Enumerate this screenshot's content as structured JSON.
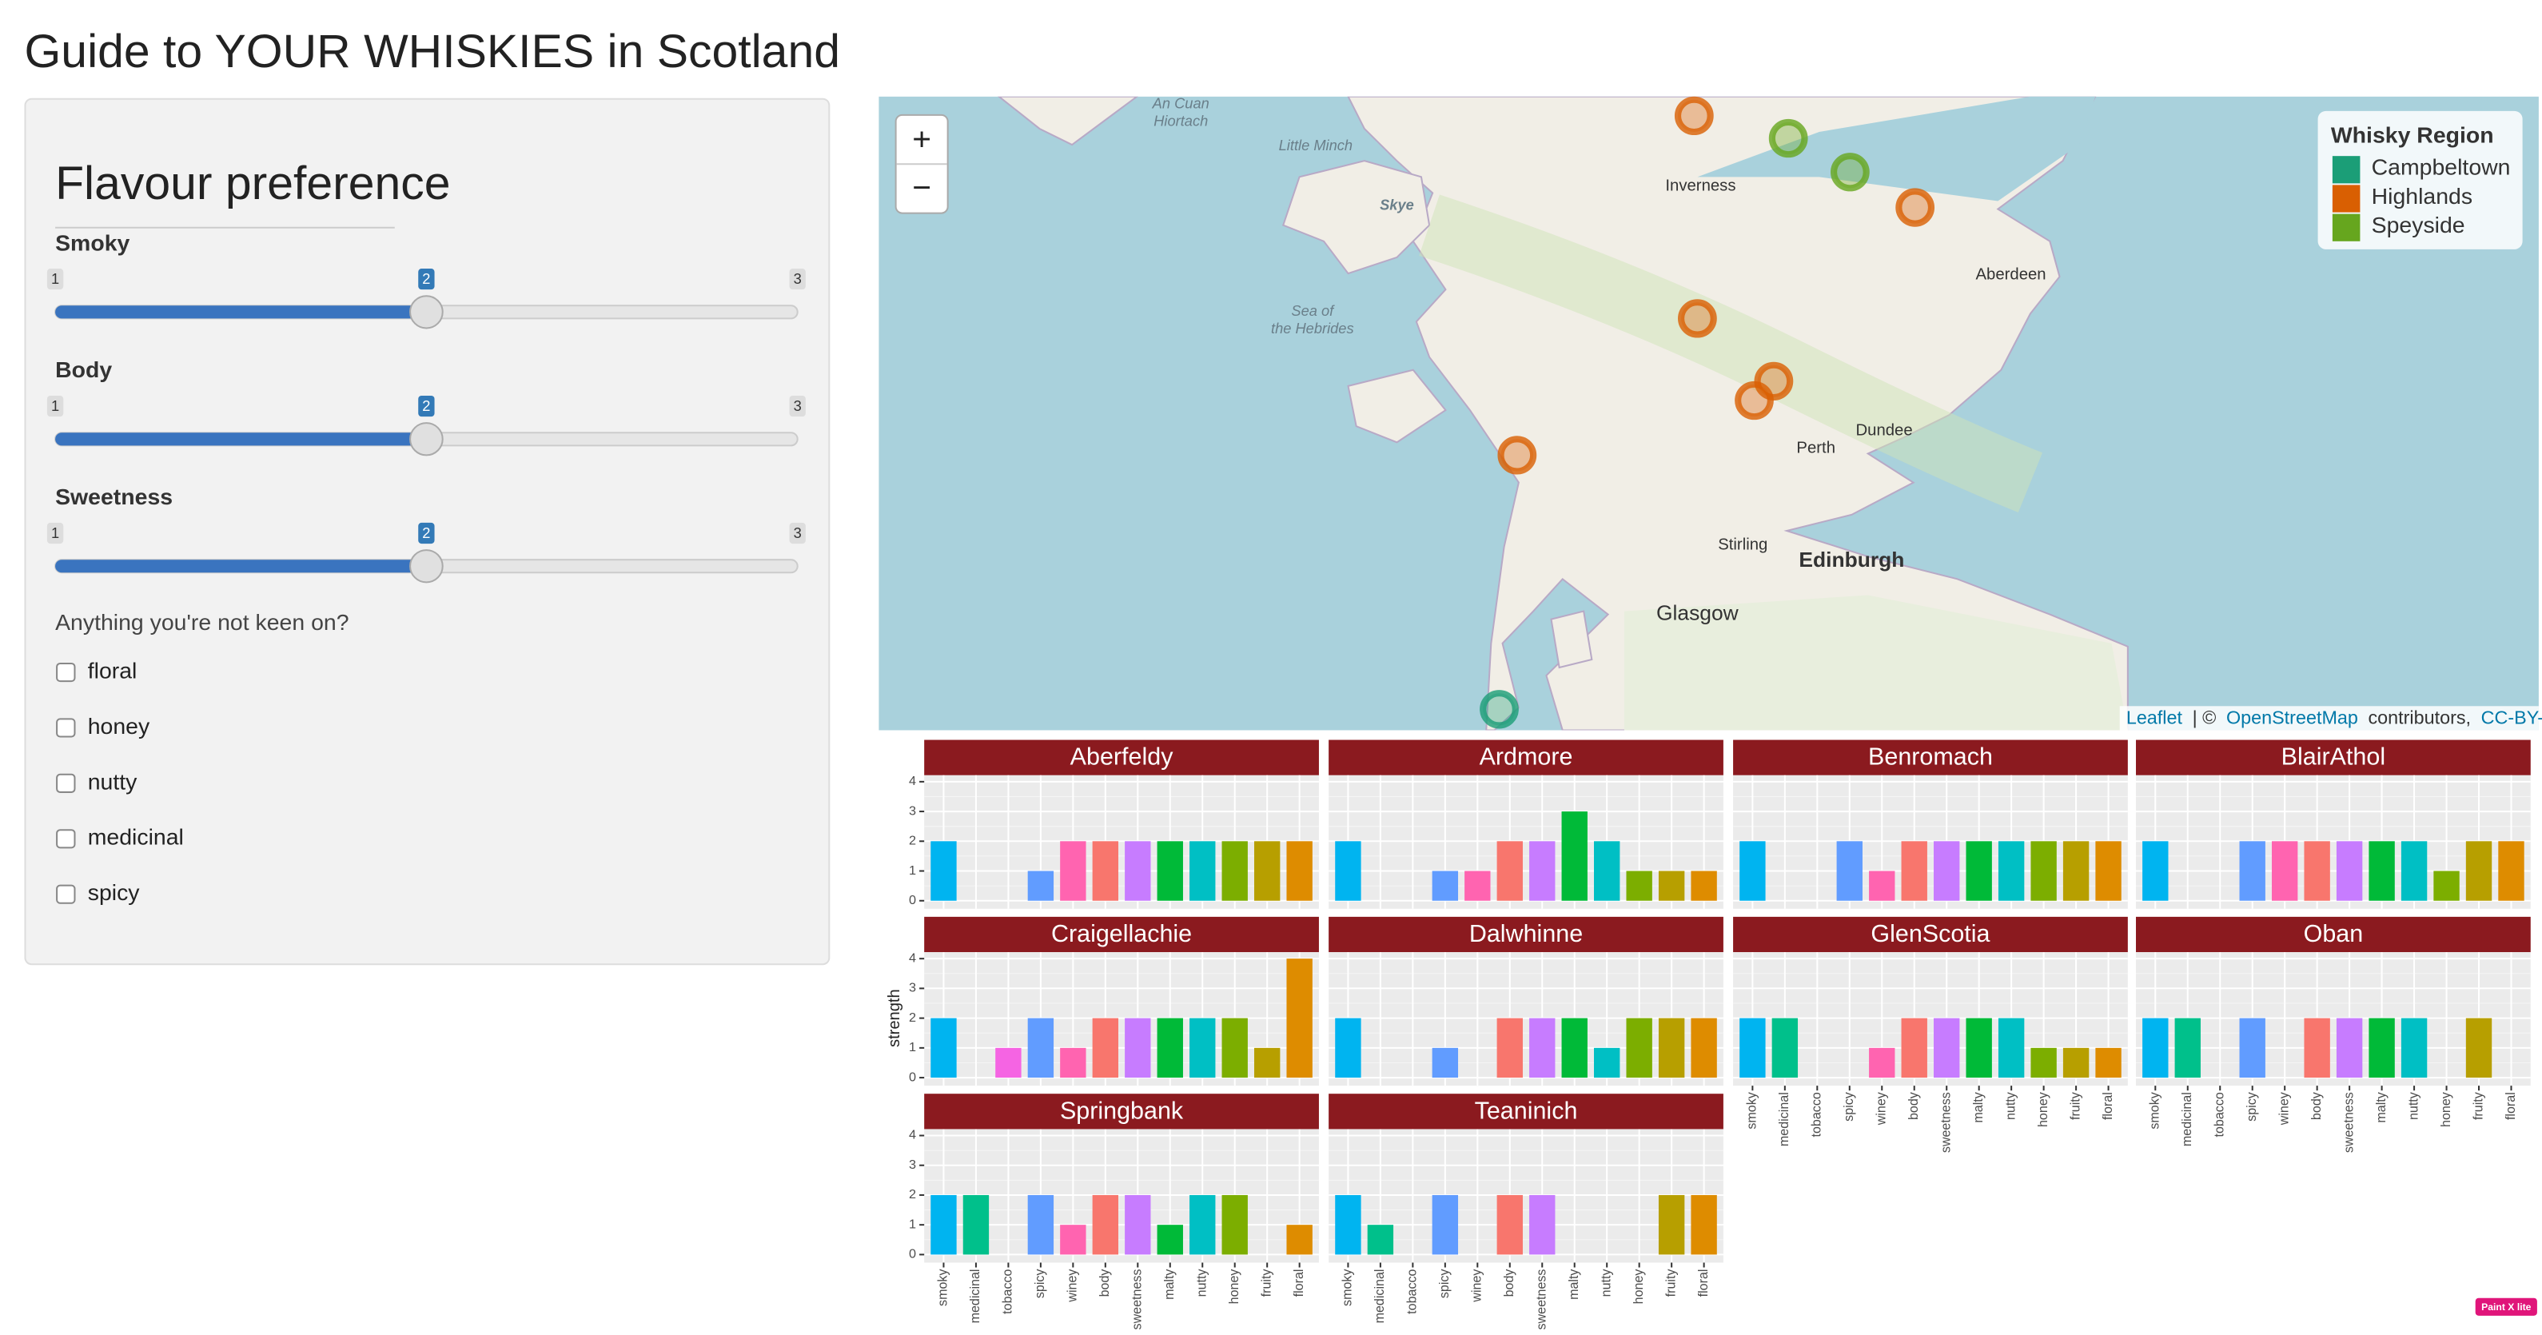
{
  "header": {
    "title": "Guide to YOUR WHISKIES in Scotland"
  },
  "sidebar": {
    "heading": "Flavour preference",
    "sliders": [
      {
        "label": "Smoky",
        "min": 1,
        "max": 3,
        "value": 2
      },
      {
        "label": "Body",
        "min": 1,
        "max": 3,
        "value": 2
      },
      {
        "label": "Sweetness",
        "min": 1,
        "max": 3,
        "value": 2
      }
    ],
    "checkbox_group": {
      "label": "Anything you're not keen on?",
      "options": [
        "floral",
        "honey",
        "nutty",
        "medicinal",
        "spicy"
      ]
    }
  },
  "map": {
    "zoom_in": "+",
    "zoom_out": "−",
    "place_labels": [
      "An Cuan",
      "Hiortach",
      "Little Minch",
      "Skye",
      "Sea of",
      "the Hebrides",
      "Inverness",
      "Aberdeen",
      "Dundee",
      "Perth",
      "Stirling",
      "Edinburgh",
      "Glasgow"
    ],
    "legend": {
      "title": "Whisky Region",
      "items": [
        {
          "name": "Campbeltown",
          "color": "#1b9e77"
        },
        {
          "name": "Highlands",
          "color": "#d95f02"
        },
        {
          "name": "Speyside",
          "color": "#66a61e"
        }
      ]
    },
    "attribution": {
      "leaflet": "Leaflet",
      "separator": "| ©",
      "osm": "OpenStreetMap",
      "contributors": "contributors,",
      "license": "CC-BY-SA"
    }
  },
  "chart_data": {
    "type": "bar",
    "y_label": "strength",
    "categories": [
      "smoky",
      "medicinal",
      "tobacco",
      "spicy",
      "winey",
      "body",
      "sweetness",
      "malty",
      "nutty",
      "honey",
      "fruity",
      "floral"
    ],
    "colors": [
      "#00b4f0",
      "#00c08b",
      "#f564e3",
      "#619cff",
      "#ff64b0",
      "#f8766d",
      "#c77cff",
      "#00ba38",
      "#00bfc4",
      "#7cae00",
      "#b79f00",
      "#de8c00"
    ],
    "ylim": [
      0,
      4
    ],
    "yticks": [
      0,
      1,
      2,
      3,
      4
    ],
    "grid": true,
    "panels": [
      {
        "name": "Aberfeldy",
        "values": [
          2,
          0,
          0,
          1,
          2,
          2,
          2,
          2,
          2,
          2,
          2,
          2
        ]
      },
      {
        "name": "Ardmore",
        "values": [
          2,
          0,
          0,
          1,
          1,
          2,
          2,
          3,
          2,
          1,
          1,
          1
        ]
      },
      {
        "name": "Benromach",
        "values": [
          2,
          0,
          0,
          2,
          1,
          2,
          2,
          2,
          2,
          2,
          2,
          2
        ]
      },
      {
        "name": "BlairAthol",
        "values": [
          2,
          0,
          0,
          2,
          2,
          2,
          2,
          2,
          2,
          1,
          2,
          2
        ]
      },
      {
        "name": "Craigellachie",
        "values": [
          2,
          0,
          1,
          2,
          1,
          2,
          2,
          2,
          2,
          2,
          1,
          4
        ]
      },
      {
        "name": "Dalwhinne",
        "values": [
          2,
          0,
          0,
          1,
          0,
          2,
          2,
          2,
          1,
          2,
          2,
          2
        ]
      },
      {
        "name": "GlenScotia",
        "values": [
          2,
          2,
          0,
          0,
          1,
          2,
          2,
          2,
          2,
          1,
          1,
          1
        ]
      },
      {
        "name": "Oban",
        "values": [
          2,
          2,
          0,
          2,
          0,
          2,
          2,
          2,
          2,
          0,
          2,
          0
        ]
      },
      {
        "name": "Springbank",
        "values": [
          2,
          2,
          0,
          2,
          1,
          2,
          2,
          1,
          2,
          2,
          0,
          1
        ]
      },
      {
        "name": "Teaninich",
        "values": [
          2,
          1,
          0,
          2,
          0,
          2,
          2,
          0,
          0,
          0,
          2,
          2
        ]
      }
    ]
  },
  "badge": "Paint X lite"
}
